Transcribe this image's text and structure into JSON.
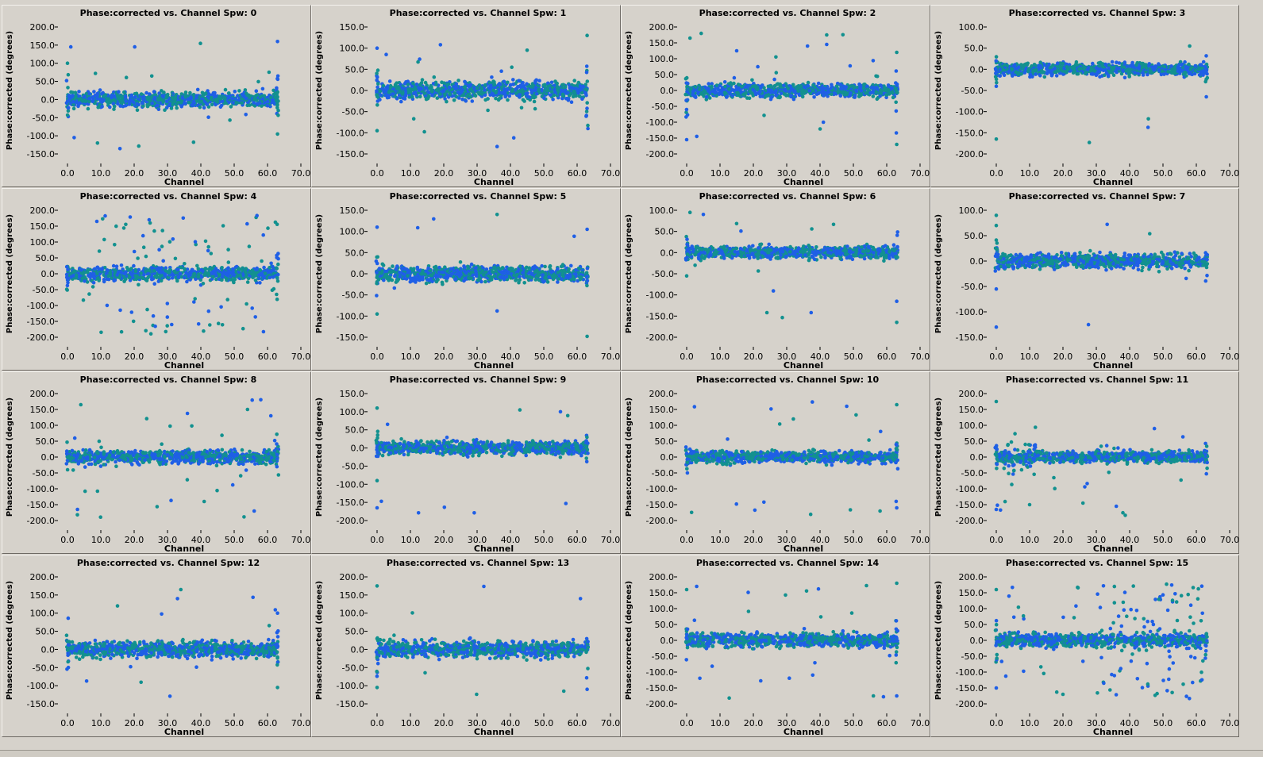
{
  "colors": {
    "background": "#d6d2cb",
    "series_blue": "#1f5fe6",
    "series_teal": "#12918f"
  },
  "chart_data": [
    {
      "type": "scatter",
      "title": "Phase:corrected vs. Channel Spw: 0",
      "xlabel": "Channel",
      "ylabel": "Phase:corrected (degrees)",
      "xlim": [
        0,
        70
      ],
      "ylim": [
        -150,
        200
      ],
      "xticks": [
        "0.0",
        "10.0",
        "20.0",
        "30.0",
        "40.0",
        "50.0",
        "60.0",
        "70.0"
      ],
      "yticks": [
        "-150.0",
        "-100.0",
        "-50.0",
        "0.0",
        "50.0",
        "100.0",
        "150.0",
        "200.0"
      ],
      "data_range": [
        0,
        63
      ],
      "core": [
        -30,
        30
      ],
      "outliers": [
        [
          0,
          100
        ],
        [
          1,
          145
        ],
        [
          9,
          -120
        ],
        [
          63,
          160
        ],
        [
          63,
          -95
        ],
        [
          2,
          -105
        ]
      ],
      "outlier_rate": 0.01,
      "edge": 0.6
    },
    {
      "type": "scatter",
      "title": "Phase:corrected vs. Channel Spw: 1",
      "xlabel": "Channel",
      "ylabel": "Phase:corrected (degrees)",
      "xlim": [
        0,
        70
      ],
      "ylim": [
        -150,
        150
      ],
      "xticks": [
        "0.0",
        "10.0",
        "20.0",
        "30.0",
        "40.0",
        "50.0",
        "60.0",
        "70.0"
      ],
      "yticks": [
        "-150.0",
        "-100.0",
        "-50.0",
        "0.0",
        "50.0",
        "100.0",
        "150.0"
      ],
      "data_range": [
        0,
        63
      ],
      "core": [
        -30,
        30
      ],
      "outliers": [
        [
          63,
          130
        ],
        [
          19,
          108
        ],
        [
          45,
          95
        ],
        [
          41,
          -112
        ],
        [
          0,
          -95
        ],
        [
          0,
          100
        ],
        [
          11,
          -67
        ]
      ],
      "outlier_rate": 0.015,
      "edge": 0.7
    },
    {
      "type": "scatter",
      "title": "Phase:corrected vs. Channel Spw: 2",
      "xlabel": "Channel",
      "ylabel": "Phase:corrected (degrees)",
      "xlim": [
        0,
        70
      ],
      "ylim": [
        -200,
        200
      ],
      "xticks": [
        "0.0",
        "10.0",
        "20.0",
        "30.0",
        "40.0",
        "50.0",
        "60.0",
        "70.0"
      ],
      "yticks": [
        "-200.0",
        "-150.0",
        "-100.0",
        "-50.0",
        "0.0",
        "50.0",
        "100.0",
        "150.0",
        "200.0"
      ],
      "data_range": [
        0,
        63
      ],
      "core": [
        -30,
        30
      ],
      "outliers": [
        [
          1,
          165
        ],
        [
          15,
          125
        ],
        [
          42,
          175
        ],
        [
          42,
          145
        ],
        [
          63,
          -170
        ],
        [
          0,
          -155
        ],
        [
          63,
          120
        ],
        [
          41,
          -100
        ]
      ],
      "outlier_rate": 0.025,
      "edge": 0.7
    },
    {
      "type": "scatter",
      "title": "Phase:corrected vs. Channel Spw: 3",
      "xlabel": "Channel",
      "ylabel": "Phase:corrected (degrees)",
      "xlim": [
        0,
        70
      ],
      "ylim": [
        -200,
        100
      ],
      "xticks": [
        "0.0",
        "10.0",
        "20.0",
        "30.0",
        "40.0",
        "50.0",
        "60.0",
        "70.0"
      ],
      "yticks": [
        "-200.0",
        "-150.0",
        "-100.0",
        "-50.0",
        "0.0",
        "50.0",
        "100.0"
      ],
      "data_range": [
        0,
        63
      ],
      "core": [
        -20,
        20
      ],
      "outliers": [
        [
          0,
          -165
        ],
        [
          63,
          -65
        ],
        [
          58,
          55
        ],
        [
          0,
          -40
        ]
      ],
      "outlier_rate": 0.005,
      "edge": 0.4
    },
    {
      "type": "scatter",
      "title": "Phase:corrected vs. Channel Spw: 4",
      "xlabel": "Channel",
      "ylabel": "Phase:corrected (degrees)",
      "xlim": [
        0,
        70
      ],
      "ylim": [
        -200,
        200
      ],
      "xticks": [
        "0.0",
        "10.0",
        "20.0",
        "30.0",
        "40.0",
        "50.0",
        "60.0",
        "70.0"
      ],
      "yticks": [
        "-200.0",
        "-150.0",
        "-100.0",
        "-50.0",
        "0.0",
        "50.0",
        "100.0",
        "150.0",
        "200.0"
      ],
      "data_range": [
        0,
        63
      ],
      "core": [
        -30,
        30
      ],
      "outliers": [],
      "outlier_rate": 0.12,
      "edge": 0.6
    },
    {
      "type": "scatter",
      "title": "Phase:corrected vs. Channel Spw: 5",
      "xlabel": "Channel",
      "ylabel": "Phase:corrected (degrees)",
      "xlim": [
        0,
        70
      ],
      "ylim": [
        -150,
        150
      ],
      "xticks": [
        "0.0",
        "10.0",
        "20.0",
        "30.0",
        "40.0",
        "50.0",
        "60.0",
        "70.0"
      ],
      "yticks": [
        "-150.0",
        "-100.0",
        "-50.0",
        "0.0",
        "50.0",
        "100.0",
        "150.0"
      ],
      "data_range": [
        0,
        63
      ],
      "core": [
        -25,
        25
      ],
      "outliers": [
        [
          36,
          140
        ],
        [
          63,
          105
        ],
        [
          63,
          -150
        ],
        [
          0,
          110
        ],
        [
          0,
          -95
        ],
        [
          36,
          -88
        ]
      ],
      "outlier_rate": 0.008,
      "edge": 0.6
    },
    {
      "type": "scatter",
      "title": "Phase:corrected vs. Channel Spw: 6",
      "xlabel": "Channel",
      "ylabel": "Phase:corrected (degrees)",
      "xlim": [
        0,
        70
      ],
      "ylim": [
        -200,
        100
      ],
      "xticks": [
        "0.0",
        "10.0",
        "20.0",
        "30.0",
        "40.0",
        "50.0",
        "60.0",
        "70.0"
      ],
      "yticks": [
        "-200.0",
        "-150.0",
        "-100.0",
        "-50.0",
        "0.0",
        "50.0",
        "100.0"
      ],
      "data_range": [
        0,
        63
      ],
      "core": [
        -20,
        20
      ],
      "outliers": [
        [
          63,
          -165
        ],
        [
          63,
          -115
        ],
        [
          1,
          95
        ],
        [
          5,
          90
        ],
        [
          0,
          -55
        ]
      ],
      "outlier_rate": 0.01,
      "edge": 0.6
    },
    {
      "type": "scatter",
      "title": "Phase:corrected vs. Channel Spw: 7",
      "xlabel": "Channel",
      "ylabel": "Phase:corrected (degrees)",
      "xlim": [
        0,
        70
      ],
      "ylim": [
        -150,
        100
      ],
      "xticks": [
        "0.0",
        "10.0",
        "20.0",
        "30.0",
        "40.0",
        "50.0",
        "60.0",
        "70.0"
      ],
      "yticks": [
        "-150.0",
        "-100.0",
        "-50.0",
        "0.0",
        "50.0",
        "100.0"
      ],
      "data_range": [
        0,
        63
      ],
      "core": [
        -20,
        20
      ],
      "outliers": [
        [
          0,
          90
        ],
        [
          0,
          -130
        ],
        [
          0,
          70
        ],
        [
          0,
          -55
        ]
      ],
      "outlier_rate": 0.005,
      "edge": 0.4
    },
    {
      "type": "scatter",
      "title": "Phase:corrected vs. Channel Spw: 8",
      "xlabel": "Channel",
      "ylabel": "Phase:corrected (degrees)",
      "xlim": [
        0,
        70
      ],
      "ylim": [
        -200,
        200
      ],
      "xticks": [
        "0.0",
        "10.0",
        "20.0",
        "30.0",
        "40.0",
        "50.0",
        "60.0",
        "70.0"
      ],
      "yticks": [
        "-200.0",
        "-150.0",
        "-100.0",
        "-50.0",
        "0.0",
        "50.0",
        "100.0",
        "150.0",
        "200.0"
      ],
      "data_range": [
        0,
        63
      ],
      "core": [
        -30,
        30
      ],
      "outliers": [
        [
          4,
          165
        ],
        [
          3,
          -165
        ],
        [
          54,
          150
        ],
        [
          56,
          -170
        ],
        [
          41,
          -140
        ],
        [
          61,
          130
        ]
      ],
      "outlier_rate": 0.03,
      "edge": 0.5
    },
    {
      "type": "scatter",
      "title": "Phase:corrected vs. Channel Spw: 9",
      "xlabel": "Channel",
      "ylabel": "Phase:corrected (degrees)",
      "xlim": [
        0,
        70
      ],
      "ylim": [
        -200,
        150
      ],
      "xticks": [
        "0.0",
        "10.0",
        "20.0",
        "30.0",
        "40.0",
        "50.0",
        "60.0",
        "70.0"
      ],
      "yticks": [
        "-200.0",
        "-150.0",
        "-100.0",
        "-50.0",
        "0.0",
        "50.0",
        "100.0",
        "150.0"
      ],
      "data_range": [
        0,
        63
      ],
      "core": [
        -25,
        25
      ],
      "outliers": [
        [
          0,
          110
        ],
        [
          0,
          -165
        ],
        [
          0,
          -90
        ],
        [
          55,
          100
        ]
      ],
      "outlier_rate": 0.008,
      "edge": 0.5
    },
    {
      "type": "scatter",
      "title": "Phase:corrected vs. Channel Spw: 10",
      "xlabel": "Channel",
      "ylabel": "Phase:corrected (degrees)",
      "xlim": [
        0,
        70
      ],
      "ylim": [
        -200,
        200
      ],
      "xticks": [
        "0.0",
        "10.0",
        "20.0",
        "30.0",
        "40.0",
        "50.0",
        "60.0",
        "70.0"
      ],
      "yticks": [
        "-200.0",
        "-150.0",
        "-100.0",
        "-50.0",
        "0.0",
        "50.0",
        "100.0",
        "150.0",
        "200.0"
      ],
      "data_range": [
        0,
        63
      ],
      "core": [
        -25,
        25
      ],
      "outliers": [
        [
          63,
          165
        ],
        [
          63,
          -160
        ],
        [
          58,
          -170
        ],
        [
          48,
          160
        ],
        [
          32,
          120
        ]
      ],
      "outlier_rate": 0.025,
      "edge": 0.7
    },
    {
      "type": "scatter",
      "title": "Phase:corrected vs. Channel Spw: 11",
      "xlabel": "Channel",
      "ylabel": "Phase:corrected (degrees)",
      "xlim": [
        0,
        70
      ],
      "ylim": [
        -200,
        200
      ],
      "xticks": [
        "0.0",
        "10.0",
        "20.0",
        "30.0",
        "40.0",
        "50.0",
        "60.0",
        "70.0"
      ],
      "yticks": [
        "-200.0",
        "-150.0",
        "-100.0",
        "-50.0",
        "0.0",
        "50.0",
        "100.0",
        "150.0",
        "200.0"
      ],
      "data_range": [
        0,
        63
      ],
      "core": [
        -25,
        25
      ],
      "outliers": [
        [
          0,
          175
        ],
        [
          0,
          -165
        ],
        [
          10,
          -150
        ],
        [
          36,
          -155
        ],
        [
          26,
          -145
        ]
      ],
      "outlier_rate": 0.03,
      "edge": 0.5,
      "bump": [
        2,
        12,
        60
      ]
    },
    {
      "type": "scatter",
      "title": "Phase:corrected vs. Channel Spw: 12",
      "xlabel": "Channel",
      "ylabel": "Phase:corrected (degrees)",
      "xlim": [
        0,
        70
      ],
      "ylim": [
        -150,
        200
      ],
      "xticks": [
        "0.0",
        "10.0",
        "20.0",
        "30.0",
        "40.0",
        "50.0",
        "60.0",
        "70.0"
      ],
      "yticks": [
        "-150.0",
        "-100.0",
        "-50.0",
        "0.0",
        "50.0",
        "100.0",
        "150.0",
        "200.0"
      ],
      "data_range": [
        0,
        63
      ],
      "core": [
        -30,
        30
      ],
      "outliers": [
        [
          34,
          165
        ],
        [
          33,
          140
        ],
        [
          15,
          120
        ],
        [
          63,
          100
        ],
        [
          63,
          -105
        ]
      ],
      "outlier_rate": 0.01,
      "edge": 0.6
    },
    {
      "type": "scatter",
      "title": "Phase:corrected vs. Channel Spw: 13",
      "xlabel": "Channel",
      "ylabel": "Phase:corrected (degrees)",
      "xlim": [
        0,
        70
      ],
      "ylim": [
        -150,
        200
      ],
      "xticks": [
        "0.0",
        "10.0",
        "20.0",
        "30.0",
        "40.0",
        "50.0",
        "60.0",
        "70.0"
      ],
      "yticks": [
        "-150.0",
        "-100.0",
        "-50.0",
        "0.0",
        "50.0",
        "100.0",
        "150.0",
        "200.0"
      ],
      "data_range": [
        0,
        63
      ],
      "core": [
        -30,
        30
      ],
      "outliers": [
        [
          0,
          175
        ],
        [
          61,
          140
        ],
        [
          0,
          -105
        ],
        [
          63,
          -110
        ],
        [
          56,
          -115
        ]
      ],
      "outlier_rate": 0.01,
      "edge": 0.6
    },
    {
      "type": "scatter",
      "title": "Phase:corrected vs. Channel Spw: 14",
      "xlabel": "Channel",
      "ylabel": "Phase:corrected (degrees)",
      "xlim": [
        0,
        70
      ],
      "ylim": [
        -200,
        200
      ],
      "xticks": [
        "0.0",
        "10.0",
        "20.0",
        "30.0",
        "40.0",
        "50.0",
        "60.0",
        "70.0"
      ],
      "yticks": [
        "-200.0",
        "-150.0",
        "-100.0",
        "-50.0",
        "0.0",
        "50.0",
        "100.0",
        "150.0",
        "200.0"
      ],
      "data_range": [
        0,
        63
      ],
      "core": [
        -30,
        30
      ],
      "outliers": [
        [
          63,
          180
        ],
        [
          63,
          -175
        ],
        [
          0,
          160
        ],
        [
          3,
          170
        ],
        [
          56,
          -175
        ]
      ],
      "outlier_rate": 0.025,
      "edge": 0.6
    },
    {
      "type": "scatter",
      "title": "Phase:corrected vs. Channel Spw: 15",
      "xlabel": "Channel",
      "ylabel": "Phase:corrected (degrees)",
      "xlim": [
        0,
        70
      ],
      "ylim": [
        -200,
        200
      ],
      "xticks": [
        "0.0",
        "10.0",
        "20.0",
        "30.0",
        "40.0",
        "50.0",
        "60.0",
        "70.0"
      ],
      "yticks": [
        "-200.0",
        "-150.0",
        "-100.0",
        "-50.0",
        "0.0",
        "50.0",
        "100.0",
        "150.0",
        "200.0"
      ],
      "data_range": [
        0,
        63
      ],
      "core": [
        -30,
        30
      ],
      "outliers": [
        [
          0,
          160
        ],
        [
          0,
          -150
        ],
        [
          20,
          -170
        ]
      ],
      "outlier_rate": 0.05,
      "edge": 0.6,
      "wide_after": 30
    }
  ]
}
